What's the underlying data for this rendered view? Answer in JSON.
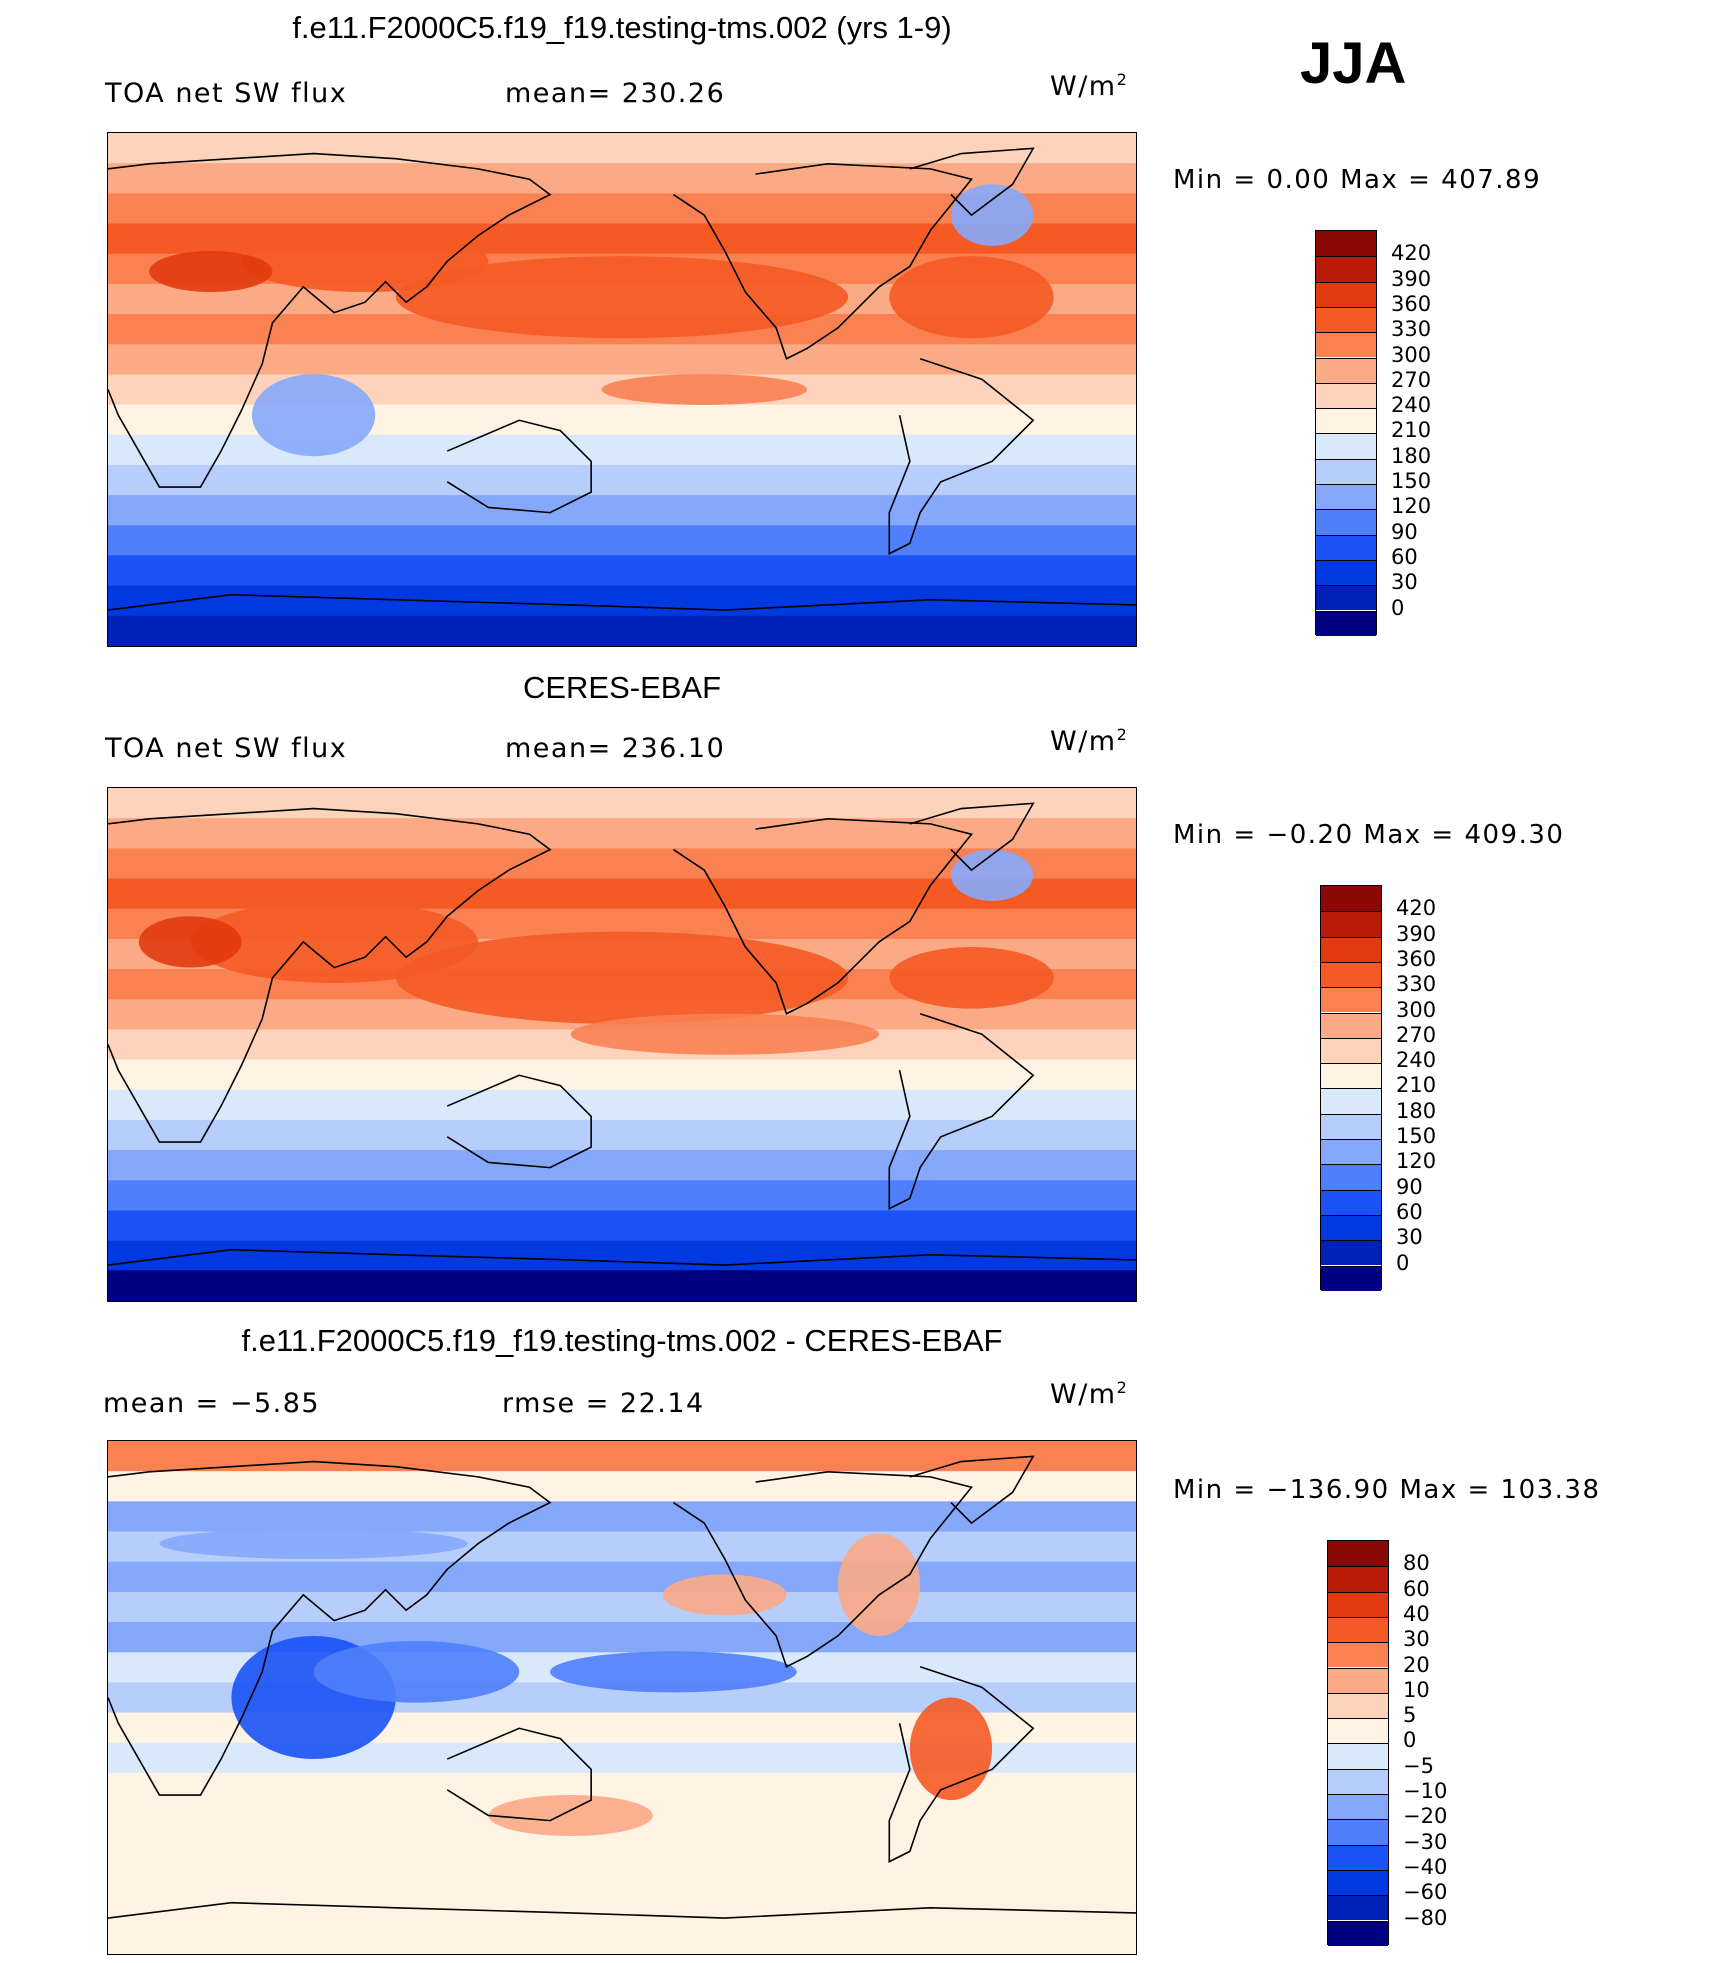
{
  "season": "JJA",
  "colors": {
    "abs_scale": [
      "#000083",
      "#0021b5",
      "#0039e0",
      "#1a52f5",
      "#4f7ffa",
      "#86a8fb",
      "#b7cdfc",
      "#dae8fc",
      "#fff3e4",
      "#fdd3bc",
      "#fbaa86",
      "#f98152",
      "#f55a25",
      "#e23a10",
      "#b81c08",
      "#8a0904"
    ],
    "diff_scale": [
      "#000083",
      "#0021b5",
      "#0039e0",
      "#1a52f5",
      "#4f7ffa",
      "#86a8fb",
      "#b7cdfc",
      "#dae8fc",
      "#fff3e4",
      "#fdd3bc",
      "#fbaa86",
      "#f98152",
      "#f55a25",
      "#e23a10",
      "#b81c08",
      "#8a0904"
    ]
  },
  "chart_data": [
    {
      "type": "heatmap",
      "title": "f.e11.F2000C5.f19_f19.testing-tms.002 (yrs 1-9)",
      "left_label": "TOA net SW flux",
      "mean_label": "mean=  230.26",
      "mean": 230.26,
      "units": "W/m",
      "units_sup": "2",
      "min_max_label": "Min  =     0.00  Max  =  407.89",
      "min": 0.0,
      "max": 407.89,
      "colorbar_levels": [
        "420",
        "390",
        "360",
        "330",
        "300",
        "270",
        "240",
        "210",
        "180",
        "150",
        "120",
        "90",
        "60",
        "30",
        "0"
      ]
    },
    {
      "type": "heatmap",
      "title": "CERES-EBAF",
      "left_label": "TOA net SW flux",
      "mean_label": "mean=  236.10",
      "mean": 236.1,
      "units": "W/m",
      "units_sup": "2",
      "min_max_label": "Min  =   −0.20  Max  =  409.30",
      "min": -0.2,
      "max": 409.3,
      "colorbar_levels": [
        "420",
        "390",
        "360",
        "330",
        "300",
        "270",
        "240",
        "210",
        "180",
        "150",
        "120",
        "90",
        "60",
        "30",
        "0"
      ]
    },
    {
      "type": "heatmap",
      "title": "f.e11.F2000C5.f19_f19.testing-tms.002 - CERES-EBAF",
      "left_label": "mean  =    −5.85",
      "mean": -5.85,
      "mean_label": "rmse  =    22.14",
      "rmse": 22.14,
      "units": "W/m",
      "units_sup": "2",
      "min_max_label": "Min  = −136.90  Max  =  103.38",
      "min": -136.9,
      "max": 103.38,
      "colorbar_levels": [
        "80",
        "60",
        "40",
        "30",
        "20",
        "10",
        "5",
        "0",
        "−5",
        "−10",
        "−20",
        "−30",
        "−40",
        "−60",
        "−80"
      ]
    }
  ]
}
